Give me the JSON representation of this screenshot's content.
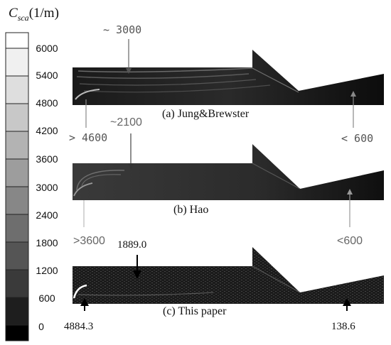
{
  "colorbar": {
    "title_symbol": "C",
    "title_subscript": "sca",
    "title_unit": "(1/m)",
    "ticks": [
      "6000",
      "5400",
      "4800",
      "4200",
      "3600",
      "3000",
      "2400",
      "1800",
      "1200",
      "600",
      "0"
    ]
  },
  "panels": [
    {
      "caption": "(a) Jung&Brewster",
      "upper_annotation": "~ 3000",
      "left_annotation": "> 4600",
      "right_annotation": "< 600"
    },
    {
      "caption": "(b) Hao",
      "upper_annotation": "~2100",
      "left_annotation": ">3600",
      "right_annotation": "<600"
    },
    {
      "caption": "(c) This paper",
      "upper_annotation": "1889.0",
      "left_annotation": "4884.3",
      "right_annotation": "138.6"
    }
  ]
}
